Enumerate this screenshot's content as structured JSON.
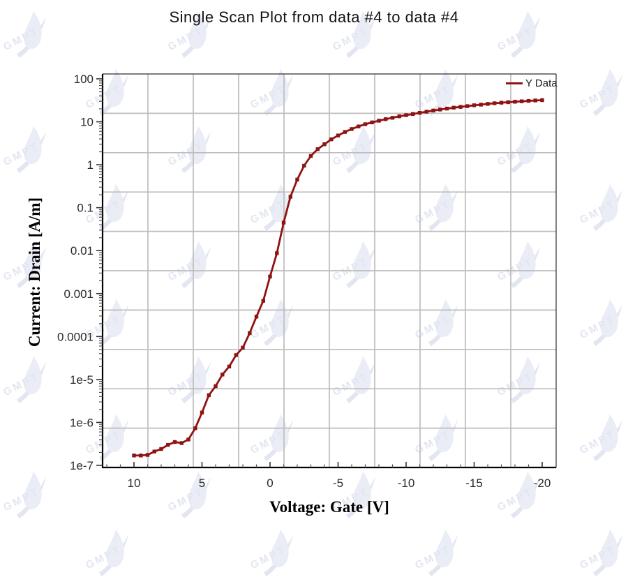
{
  "title": "Single Scan Plot from data #4 to data #4",
  "watermark": {
    "text": "GMPT",
    "logo_color": "#eaedf6",
    "swoosh_color": "#e2e6f1"
  },
  "legend": {
    "label": "Y Data",
    "line_color": "#8e1313",
    "position": "top-right"
  },
  "chart_data": {
    "type": "line",
    "title": "Single Scan Plot from data #4 to data #4",
    "xlabel": "Voltage: Gate [V]",
    "ylabel": "Current: Drain [A/m]",
    "x_axis_reversed": true,
    "xlim": [
      12.3,
      -21.1
    ],
    "y_scale": "log",
    "ylim": [
      1e-07,
      130
    ],
    "x_tick_values": [
      10,
      5,
      0,
      -5,
      -10,
      -15,
      -20
    ],
    "x_tick_labels": [
      "10",
      "5",
      "0",
      "-5",
      "-10",
      "-15",
      "-20"
    ],
    "x_minor_tick_step": 1,
    "y_tick_labels": [
      "100",
      "10",
      "1",
      "0.1",
      "0.01",
      "0.001",
      "0.0001",
      "1e-5",
      "1e-6",
      "1e-7"
    ],
    "grid": "uniform 10x10 divisions, not aligned to ticks",
    "legend_position": "top-right",
    "series": [
      {
        "name": "Y Data",
        "color": "#8e1313",
        "marker": "square",
        "x": [
          10,
          9.5,
          9,
          8.5,
          8,
          7.5,
          7,
          6.5,
          6,
          5.5,
          5,
          4.5,
          4,
          3.5,
          3,
          2.5,
          2,
          1.5,
          1,
          0.5,
          0,
          -0.5,
          -1,
          -1.5,
          -2,
          -2.5,
          -3,
          -3.5,
          -4,
          -4.5,
          -5,
          -5.5,
          -6,
          -6.5,
          -7,
          -7.5,
          -8,
          -8.5,
          -9,
          -9.5,
          -10,
          -10.5,
          -11,
          -11.5,
          -12,
          -12.5,
          -13,
          -13.5,
          -14,
          -14.5,
          -15,
          -15.5,
          -16,
          -16.5,
          -17,
          -17.5,
          -18,
          -18.5,
          -19,
          -19.5,
          -20
        ],
        "y": [
          1.7e-07,
          1.7e-07,
          1.75e-07,
          2.1e-07,
          2.4e-07,
          3e-07,
          3.5e-07,
          3.3e-07,
          4e-07,
          7.3e-07,
          1.7e-06,
          4.3e-06,
          7e-06,
          1.3e-05,
          2e-05,
          3.7e-05,
          5.5e-05,
          0.00012,
          0.00029,
          0.00068,
          0.0025,
          0.0087,
          0.045,
          0.18,
          0.45,
          0.95,
          1.6,
          2.3,
          3.0,
          3.9,
          4.8,
          5.8,
          6.8,
          7.8,
          8.8,
          9.7,
          10.6,
          11.5,
          12.4,
          13.4,
          14.3,
          15.2,
          16.2,
          17.2,
          18.3,
          19.3,
          20.3,
          21.3,
          22.2,
          23.2,
          24.2,
          25.1,
          26.1,
          27.0,
          27.8,
          28.6,
          29.3,
          30.0,
          30.7,
          31.4,
          32.0
        ]
      }
    ]
  }
}
